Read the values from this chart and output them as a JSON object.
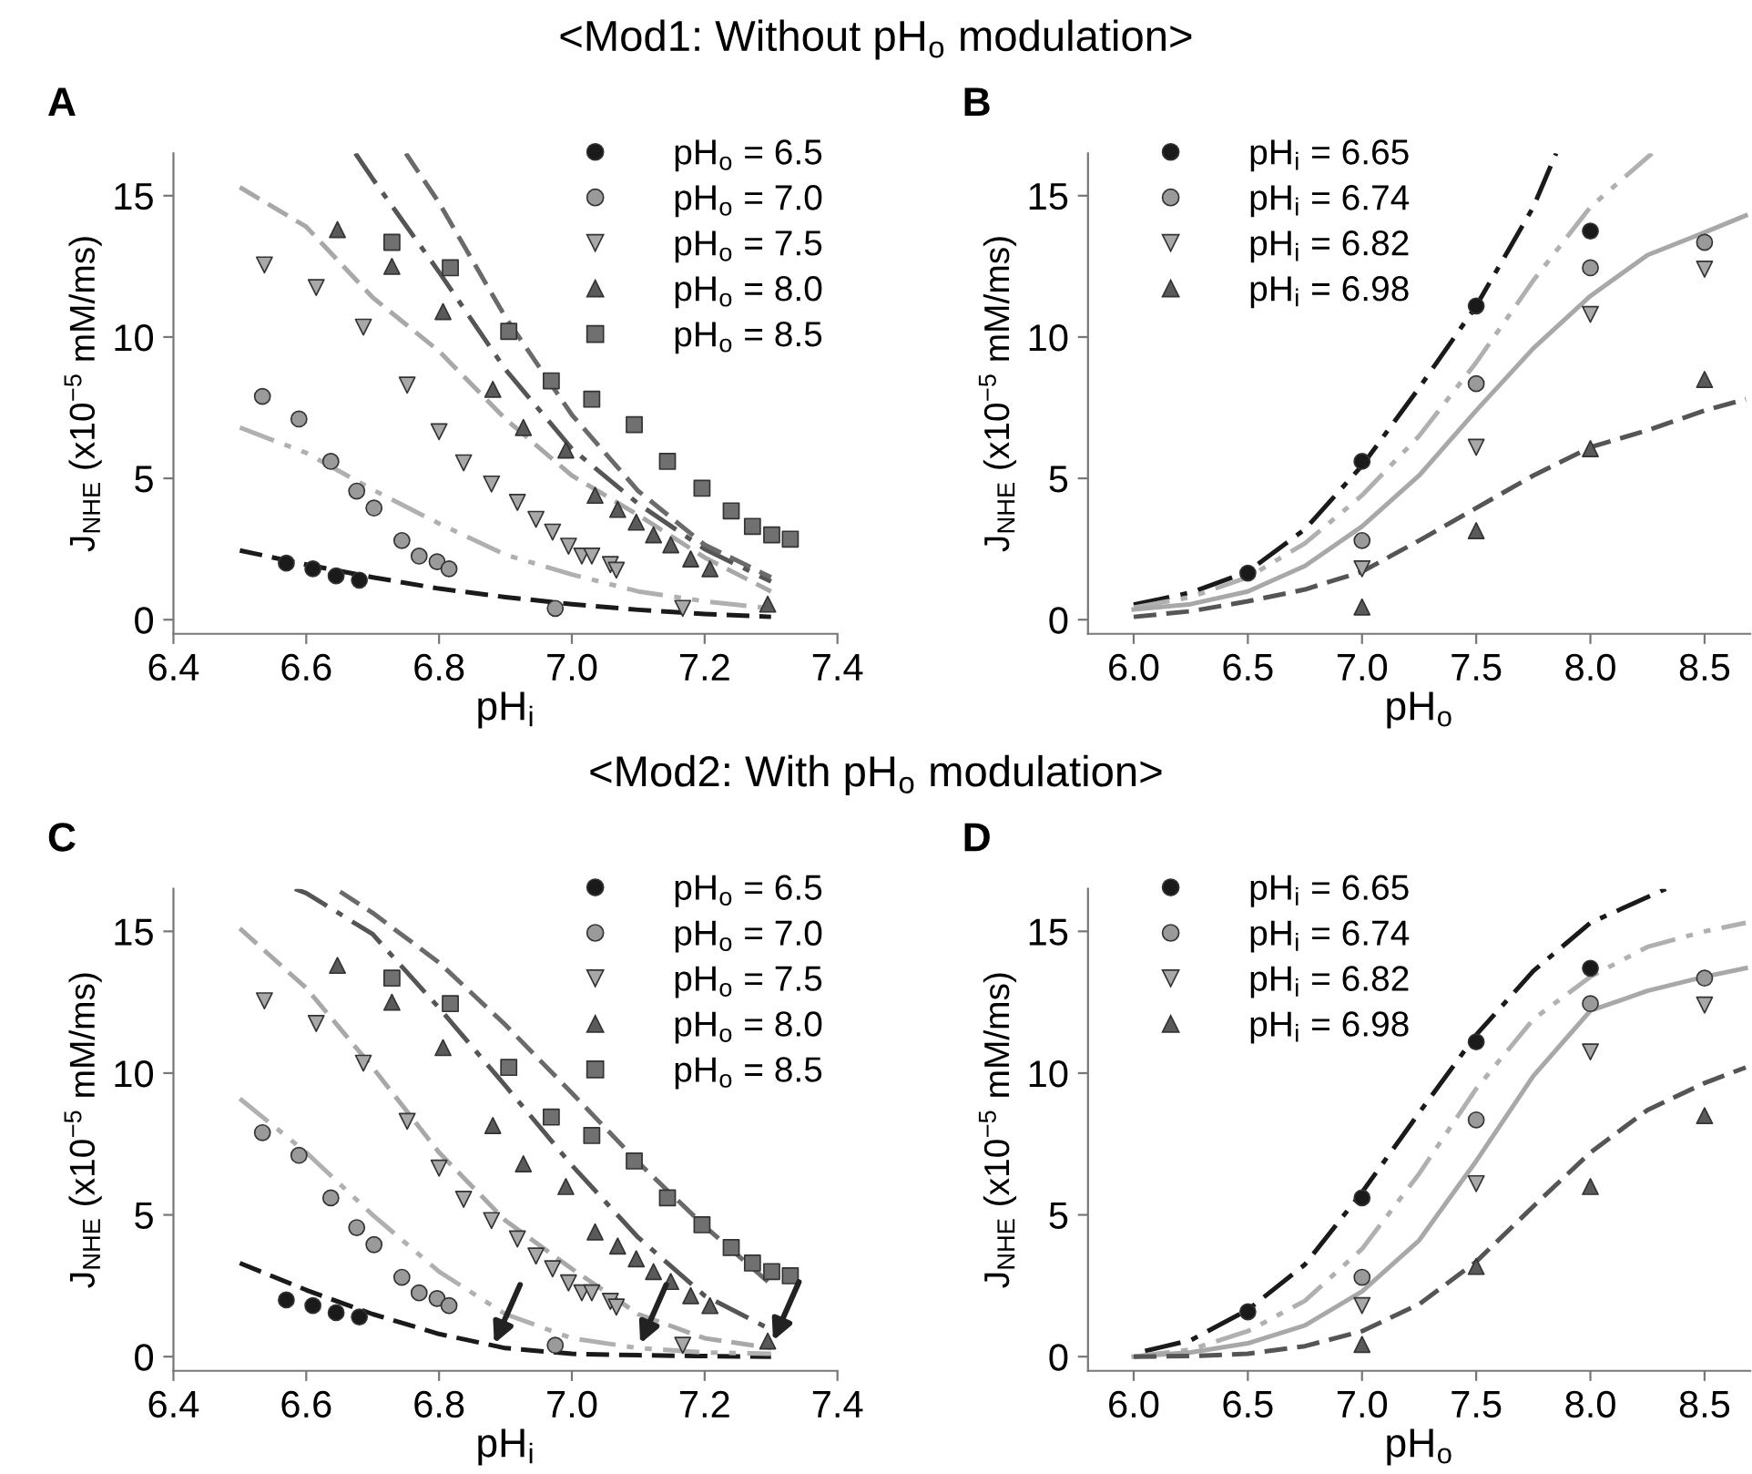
{
  "chart_data": [
    {
      "type": "scatter",
      "title": "<Mod1: Without pH$_{o}$ modulation>",
      "annotations": [
        "A"
      ],
      "xlabel": "pH$_{i}$",
      "ylabel": "J$_{NHE}$ (x10$^{−5}$ mM/ms)",
      "xlim": [
        6.4,
        7.4
      ],
      "ylim": [
        -0.5,
        16.5
      ],
      "xticks": [
        6.4,
        6.6,
        6.8,
        {
          "value": 7.0,
          "label": "7.0"
        },
        7.2,
        7.4
      ],
      "yticks": [
        0,
        5,
        10,
        15
      ],
      "legend": "top right",
      "series": [
        {
          "name": "pH$_{o}$ = 6.5",
          "marker": "circle",
          "color": "#1a1a1a",
          "x": [
            6.57,
            6.61,
            6.645,
            6.68
          ],
          "values": [
            2.0,
            1.8,
            1.55,
            1.4
          ]
        },
        {
          "name": "pH$_{o}$ = 7.0",
          "marker": "circle",
          "color": "#9a9a9a",
          "x": [
            6.534,
            6.589,
            6.637,
            6.676,
            6.702,
            6.744,
            6.77,
            6.797,
            6.815,
            6.975
          ],
          "values": [
            7.9,
            7.1,
            5.6,
            4.55,
            3.95,
            2.8,
            2.25,
            2.05,
            1.8,
            0.4
          ]
        },
        {
          "name": "pH$_{o}$ = 7.5",
          "marker": "triangle_down",
          "color": "#a8a8a8",
          "x": [
            6.537,
            6.615,
            6.686,
            6.752,
            6.8,
            6.837,
            6.879,
            6.918,
            6.946,
            6.971,
            6.995,
            7.015,
            7.03,
            7.058,
            7.067,
            7.167
          ],
          "values": [
            12.55,
            11.75,
            10.35,
            8.3,
            6.65,
            5.55,
            4.8,
            4.15,
            3.55,
            3.1,
            2.6,
            2.25,
            2.25,
            1.95,
            1.75,
            0.4
          ]
        },
        {
          "name": "pH$_{o}$ = 8.0",
          "marker": "triangle",
          "color": "#5a5a5a",
          "x": [
            6.647,
            6.729,
            6.806,
            6.881,
            6.927,
            6.991,
            7.035,
            7.069,
            7.097,
            7.123,
            7.149,
            7.179,
            7.208,
            7.295
          ],
          "values": [
            13.8,
            12.5,
            10.9,
            8.15,
            6.8,
            6.0,
            4.4,
            3.9,
            3.45,
            3.0,
            2.65,
            2.15,
            1.8,
            0.55
          ]
        },
        {
          "name": "pH$_{o}$ = 8.5",
          "marker": "square",
          "color": "#707070",
          "x": [
            6.729,
            6.817,
            6.905,
            6.969,
            7.03,
            7.094,
            7.144,
            7.196,
            7.24,
            7.272,
            7.301,
            7.329
          ],
          "values": [
            13.35,
            12.45,
            10.2,
            8.45,
            7.8,
            6.9,
            5.6,
            4.65,
            3.85,
            3.3,
            3.0,
            2.85
          ]
        },
        {
          "type": "line",
          "line_style": "dashed",
          "color": "#1a1a1a",
          "x": [
            6.5,
            6.6,
            6.7,
            6.8,
            6.9,
            7.0,
            7.1,
            7.2,
            7.3
          ],
          "values": [
            2.45,
            1.95,
            1.5,
            1.1,
            0.8,
            0.55,
            0.35,
            0.2,
            0.1
          ]
        },
        {
          "type": "line",
          "line_style": "dashdotdot",
          "color": "#b0b0b0",
          "x": [
            6.5,
            6.6,
            6.7,
            6.8,
            6.9,
            7.0,
            7.1,
            7.2,
            7.3
          ],
          "values": [
            6.8,
            5.9,
            4.6,
            3.4,
            2.3,
            1.6,
            1.0,
            0.65,
            0.4
          ]
        },
        {
          "type": "line",
          "line_style": "dashed",
          "color": "#a8a8a8",
          "x": [
            6.5,
            6.6,
            6.7,
            6.8,
            6.9,
            7.0,
            7.1,
            7.2,
            7.3
          ],
          "values": [
            15.3,
            13.9,
            11.4,
            9.5,
            7.1,
            5.1,
            3.7,
            2.2,
            1.0
          ]
        },
        {
          "type": "line",
          "line_style": "dashdot",
          "color": "#555555",
          "x": [
            6.674,
            6.7,
            6.8,
            6.9,
            7.0,
            7.1,
            7.2,
            7.3
          ],
          "values": [
            16.5,
            15.6,
            12.3,
            8.85,
            6.05,
            4.1,
            2.5,
            1.35
          ]
        },
        {
          "type": "line",
          "line_style": "dashed",
          "color": "#6a6a6a",
          "x": [
            6.75,
            6.8,
            6.9,
            7.0,
            7.1,
            7.2,
            7.3
          ],
          "values": [
            16.5,
            14.75,
            10.7,
            7.25,
            4.55,
            2.65,
            1.5
          ]
        }
      ]
    },
    {
      "type": "scatter",
      "annotations": [
        "B"
      ],
      "xlabel": "pH$_{o}$",
      "ylabel": "J$_{NHE}$ (x10$^{−5}$ mM/ms)",
      "xlim": [
        5.8,
        8.7
      ],
      "ylim": [
        -0.5,
        16.5
      ],
      "xticks": [
        {
          "value": 6.0,
          "label": "6.0"
        },
        6.5,
        {
          "value": 7.0,
          "label": "7.0"
        },
        7.5,
        {
          "value": 8.0,
          "label": "8.0"
        },
        8.5
      ],
      "yticks": [
        0,
        5,
        10,
        15
      ],
      "legend": "top left",
      "series": [
        {
          "name": "pH$_{i}$ = 6.65",
          "marker": "circle",
          "color": "#1a1a1a",
          "x": [
            6.5,
            7.0,
            7.5,
            8.0
          ],
          "values": [
            1.65,
            5.6,
            11.1,
            13.75
          ]
        },
        {
          "name": "pH$_{i}$ = 6.74",
          "marker": "circle",
          "color": "#9a9a9a",
          "x": [
            7.0,
            7.5,
            8.0,
            8.5
          ],
          "values": [
            2.8,
            8.35,
            12.45,
            13.35
          ]
        },
        {
          "name": "pH$_{i}$ = 6.82",
          "marker": "triangle_down",
          "color": "#a8a8a8",
          "x": [
            7.0,
            7.5,
            8.0,
            8.5
          ],
          "values": [
            1.8,
            6.1,
            10.8,
            12.4
          ]
        },
        {
          "name": "pH$_{i}$ = 6.98",
          "marker": "triangle",
          "color": "#5a5a5a",
          "x": [
            7.0,
            7.5,
            8.0,
            8.5
          ],
          "values": [
            0.45,
            3.15,
            6.05,
            8.5
          ]
        },
        {
          "type": "line",
          "line_style": "dashdot",
          "color": "#1a1a1a",
          "x": [
            6.0,
            6.25,
            6.5,
            6.75,
            7.0,
            7.25,
            7.5,
            7.75,
            7.85
          ],
          "values": [
            0.53,
            0.96,
            1.7,
            3.2,
            5.45,
            8.2,
            11.1,
            14.6,
            16.5
          ]
        },
        {
          "type": "line",
          "line_style": "dashdotdot",
          "color": "#b0b0b0",
          "x": [
            6.0,
            6.25,
            6.5,
            6.75,
            7.0,
            7.25,
            7.5,
            7.75,
            8.0,
            8.27
          ],
          "values": [
            0.43,
            0.8,
            1.5,
            2.7,
            4.4,
            6.5,
            9.1,
            12.0,
            14.6,
            16.5
          ]
        },
        {
          "type": "line",
          "line_style": "solid",
          "color": "#a8a8a8",
          "x": [
            6.0,
            6.25,
            6.5,
            6.75,
            7.0,
            7.25,
            7.5,
            7.75,
            8.0,
            8.25,
            8.5,
            8.68
          ],
          "values": [
            0.36,
            0.55,
            1.0,
            1.9,
            3.3,
            5.1,
            7.4,
            9.6,
            11.45,
            12.9,
            13.7,
            14.3
          ]
        },
        {
          "type": "line",
          "line_style": "dashed",
          "color": "#555555",
          "x": [
            6.0,
            6.25,
            6.5,
            6.75,
            7.0,
            7.25,
            7.5,
            7.75,
            8.0,
            8.25,
            8.5,
            8.68
          ],
          "values": [
            0.1,
            0.3,
            0.65,
            1.07,
            1.7,
            2.8,
            3.95,
            5.1,
            6.1,
            6.7,
            7.4,
            7.8
          ]
        }
      ]
    },
    {
      "type": "scatter",
      "title": "<Mod2: With pH$_{o}$ modulation>",
      "annotations": [
        "C"
      ],
      "xlabel": "pH$_{i}$",
      "ylabel": "J$_{NHE}$ (x10$^{−5}$ mM/ms)",
      "xlim": [
        6.4,
        7.4
      ],
      "ylim": [
        -0.5,
        16.5
      ],
      "xticks": [
        6.4,
        6.6,
        6.8,
        {
          "value": 7.0,
          "label": "7.0"
        },
        7.2,
        7.4
      ],
      "yticks": [
        0,
        5,
        10,
        15
      ],
      "legend": "top right",
      "series": [
        {
          "name": "pH$_{o}$ = 6.5",
          "marker": "circle",
          "color": "#1a1a1a",
          "x": [
            6.57,
            6.61,
            6.645,
            6.68
          ],
          "values": [
            2.0,
            1.8,
            1.55,
            1.4
          ]
        },
        {
          "name": "pH$_{o}$ = 7.0",
          "marker": "circle",
          "color": "#9a9a9a",
          "x": [
            6.534,
            6.589,
            6.637,
            6.676,
            6.702,
            6.744,
            6.77,
            6.797,
            6.815,
            6.975
          ],
          "values": [
            7.9,
            7.1,
            5.6,
            4.55,
            3.95,
            2.8,
            2.25,
            2.05,
            1.8,
            0.4
          ]
        },
        {
          "name": "pH$_{o}$ = 7.5",
          "marker": "triangle_down",
          "color": "#a8a8a8",
          "x": [
            6.537,
            6.615,
            6.686,
            6.752,
            6.8,
            6.837,
            6.879,
            6.918,
            6.946,
            6.971,
            6.995,
            7.015,
            7.03,
            7.058,
            7.067,
            7.167
          ],
          "values": [
            12.55,
            11.75,
            10.35,
            8.3,
            6.65,
            5.55,
            4.8,
            4.15,
            3.55,
            3.1,
            2.6,
            2.25,
            2.25,
            1.95,
            1.75,
            0.4
          ]
        },
        {
          "name": "pH$_{o}$ = 8.0",
          "marker": "triangle",
          "color": "#5a5a5a",
          "x": [
            6.647,
            6.729,
            6.806,
            6.881,
            6.927,
            6.991,
            7.035,
            7.069,
            7.097,
            7.123,
            7.149,
            7.179,
            7.208,
            7.295
          ],
          "values": [
            13.8,
            12.5,
            10.9,
            8.15,
            6.8,
            6.0,
            4.4,
            3.9,
            3.45,
            3.0,
            2.65,
            2.15,
            1.8,
            0.55
          ]
        },
        {
          "name": "pH$_{o}$ = 8.5",
          "marker": "square",
          "color": "#707070",
          "x": [
            6.729,
            6.817,
            6.905,
            6.969,
            7.03,
            7.094,
            7.144,
            7.196,
            7.24,
            7.272,
            7.301,
            7.329
          ],
          "values": [
            13.35,
            12.45,
            10.2,
            8.45,
            7.8,
            6.9,
            5.6,
            4.65,
            3.85,
            3.3,
            3.0,
            2.85
          ]
        },
        {
          "type": "line",
          "line_style": "dashed",
          "color": "#1a1a1a",
          "x": [
            6.5,
            6.6,
            6.7,
            6.8,
            6.9,
            7.0,
            7.1,
            7.2,
            7.3
          ],
          "values": [
            3.3,
            2.35,
            1.5,
            0.8,
            0.3,
            0.1,
            0.05,
            0.02,
            0.0
          ]
        },
        {
          "type": "line",
          "line_style": "dashdotdot",
          "color": "#b0b0b0",
          "x": [
            6.5,
            6.6,
            6.7,
            6.8,
            6.9,
            7.0,
            7.1,
            7.2,
            7.3
          ],
          "values": [
            9.1,
            7.2,
            5.0,
            3.0,
            1.5,
            0.65,
            0.3,
            0.15,
            0.1
          ]
        },
        {
          "type": "line",
          "line_style": "dashed",
          "color": "#a8a8a8",
          "x": [
            6.5,
            6.6,
            6.7,
            6.8,
            6.9,
            7.0,
            7.1,
            7.2,
            7.3
          ],
          "values": [
            15.1,
            13.0,
            10.2,
            7.2,
            4.8,
            3.1,
            1.5,
            0.65,
            0.3
          ]
        },
        {
          "type": "line",
          "line_style": "dashdot",
          "color": "#555555",
          "x": [
            6.583,
            6.6,
            6.7,
            6.8,
            6.9,
            7.0,
            7.1,
            7.2,
            7.3
          ],
          "values": [
            16.5,
            16.35,
            14.9,
            12.3,
            9.55,
            6.75,
            4.2,
            2.15,
            0.95
          ]
        },
        {
          "type": "line",
          "line_style": "dashed",
          "color": "#6a6a6a",
          "x": [
            6.651,
            6.7,
            6.8,
            6.9,
            7.0,
            7.1,
            7.2,
            7.3
          ],
          "values": [
            16.4,
            15.65,
            13.9,
            11.7,
            9.3,
            6.85,
            4.6,
            2.55
          ]
        }
      ]
    },
    {
      "type": "scatter",
      "annotations": [
        "D"
      ],
      "xlabel": "pH$_{o}$",
      "ylabel": "J$_{NHE}$ (x10$^{−5}$ mM/ms)",
      "xlim": [
        5.8,
        8.7
      ],
      "ylim": [
        -0.5,
        16.5
      ],
      "xticks": [
        {
          "value": 6.0,
          "label": "6.0"
        },
        6.5,
        {
          "value": 7.0,
          "label": "7.0"
        },
        7.5,
        {
          "value": 8.0,
          "label": "8.0"
        },
        8.5
      ],
      "yticks": [
        0,
        5,
        10,
        15
      ],
      "legend": "top left",
      "series": [
        {
          "name": "pH$_{i}$ = 6.65",
          "marker": "circle",
          "color": "#1a1a1a",
          "x": [
            6.5,
            7.0,
            7.5,
            8.0
          ],
          "values": [
            1.58,
            5.6,
            11.1,
            13.7
          ]
        },
        {
          "name": "pH$_{i}$ = 6.74",
          "marker": "circle",
          "color": "#9a9a9a",
          "x": [
            7.0,
            7.5,
            8.0,
            8.5
          ],
          "values": [
            2.8,
            8.35,
            12.45,
            13.35
          ]
        },
        {
          "name": "pH$_{i}$ = 6.82",
          "marker": "triangle_down",
          "color": "#a8a8a8",
          "x": [
            7.0,
            7.5,
            8.0,
            8.5
          ],
          "values": [
            1.8,
            6.1,
            10.75,
            12.4
          ]
        },
        {
          "name": "pH$_{i}$ = 6.98",
          "marker": "triangle",
          "color": "#5a5a5a",
          "x": [
            7.0,
            7.5,
            8.0,
            8.5
          ],
          "values": [
            0.43,
            3.18,
            6.0,
            8.5
          ]
        },
        {
          "type": "line",
          "line_style": "dashdot",
          "color": "#1a1a1a",
          "x": [
            6.05,
            6.25,
            6.5,
            6.75,
            7.0,
            7.25,
            7.5,
            7.75,
            8.0,
            8.33
          ],
          "values": [
            0.2,
            0.58,
            1.65,
            3.25,
            5.8,
            8.6,
            11.35,
            13.6,
            15.3,
            16.5
          ]
        },
        {
          "type": "line",
          "line_style": "dashdotdot",
          "color": "#b0b0b0",
          "x": [
            6.0,
            6.25,
            6.5,
            6.75,
            7.0,
            7.25,
            7.5,
            7.75,
            8.0,
            8.25,
            8.5,
            8.68
          ],
          "values": [
            0.0,
            0.25,
            0.9,
            1.97,
            3.8,
            6.45,
            9.45,
            11.9,
            13.4,
            14.45,
            15.0,
            15.3
          ]
        },
        {
          "type": "line",
          "line_style": "solid",
          "color": "#a8a8a8",
          "x": [
            6.0,
            6.25,
            6.5,
            6.75,
            7.0,
            7.25,
            7.5,
            7.75,
            8.0,
            8.25,
            8.5,
            8.68
          ],
          "values": [
            0.0,
            0.15,
            0.47,
            1.1,
            2.3,
            4.1,
            6.9,
            9.9,
            12.2,
            12.9,
            13.4,
            13.7
          ]
        },
        {
          "type": "line",
          "line_style": "dashed",
          "color": "#555555",
          "x": [
            6.0,
            6.25,
            6.5,
            6.75,
            7.0,
            7.25,
            7.5,
            7.75,
            8.0,
            8.25,
            8.5,
            8.68
          ],
          "values": [
            0.0,
            0.02,
            0.1,
            0.37,
            0.9,
            1.85,
            3.35,
            5.3,
            7.2,
            8.7,
            9.65,
            10.2
          ]
        }
      ]
    }
  ]
}
